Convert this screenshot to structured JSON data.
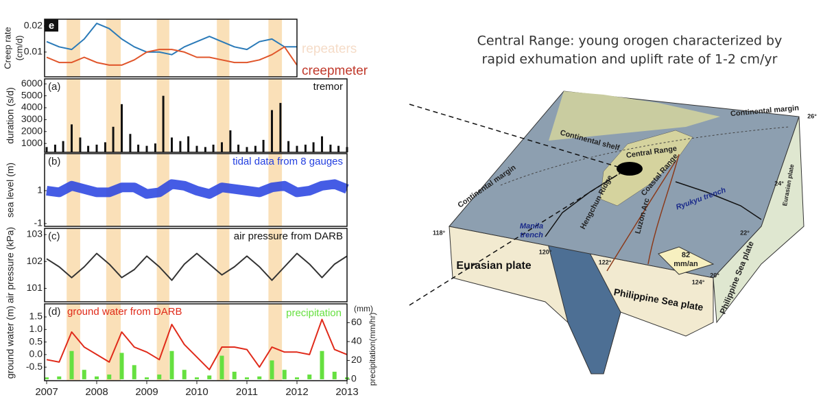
{
  "highlight_periods": [
    [
      2007.4,
      2007.67
    ],
    [
      2008.19,
      2008.48
    ],
    [
      2009.2,
      2009.45
    ],
    [
      2010.4,
      2010.65
    ],
    [
      2011.43,
      2011.7
    ]
  ],
  "chart_data": [
    {
      "type": "line",
      "label": "e",
      "ylabel": [
        "Creep rate",
        "(cm/d)"
      ],
      "xlim": [
        2007,
        2012
      ],
      "ylim": [
        0.0005,
        0.0226
      ],
      "yticks": [
        0.01,
        0.02
      ],
      "x": [
        2007,
        2007.25,
        2007.5,
        2007.75,
        2008,
        2008.25,
        2008.5,
        2008.75,
        2009,
        2009.25,
        2009.5,
        2009.75,
        2010,
        2010.25,
        2010.5,
        2010.75,
        2011,
        2011.25,
        2011.5,
        2011.75,
        2012
      ],
      "series": [
        {
          "name": "repeaters",
          "color": "#2a7ab8",
          "values": [
            0.014,
            0.012,
            0.011,
            0.015,
            0.021,
            0.019,
            0.015,
            0.012,
            0.01,
            0.01,
            0.009,
            0.012,
            0.014,
            0.016,
            0.014,
            0.012,
            0.011,
            0.014,
            0.015,
            0.012,
            0.012
          ]
        },
        {
          "name": "creepmeter",
          "color": "#e0552a",
          "values": [
            0.008,
            0.006,
            0.006,
            0.008,
            0.006,
            0.005,
            0.005,
            0.007,
            0.01,
            0.011,
            0.011,
            0.01,
            0.008,
            0.008,
            0.007,
            0.006,
            0.006,
            0.007,
            0.009,
            0.012,
            0.005
          ]
        }
      ]
    },
    {
      "type": "bar",
      "label": "(a)",
      "ylabel": "duration (s/d)",
      "xlim": [
        2007,
        2013
      ],
      "ylim": [
        260,
        6420
      ],
      "yticks": [
        1000,
        2000,
        3000,
        4000,
        5000,
        6000
      ],
      "x": [
        2007,
        2007.17,
        2007.33,
        2007.5,
        2007.67,
        2007.83,
        2008,
        2008.17,
        2008.33,
        2008.5,
        2008.67,
        2008.83,
        2009,
        2009.17,
        2009.33,
        2009.5,
        2009.67,
        2009.83,
        2010,
        2010.17,
        2010.33,
        2010.5,
        2010.67,
        2010.83,
        2011,
        2011.17,
        2011.33,
        2011.5,
        2011.67,
        2011.83,
        2012,
        2012.17,
        2012.33,
        2012.5,
        2012.67,
        2012.83,
        2013
      ],
      "series": [
        {
          "name": "tremor",
          "color": "#111111",
          "values": [
            700,
            900,
            1200,
            2600,
            1500,
            800,
            900,
            1100,
            2400,
            4300,
            1800,
            900,
            800,
            1000,
            5000,
            1500,
            1200,
            1600,
            800,
            700,
            900,
            1100,
            2100,
            900,
            700,
            800,
            1300,
            3800,
            4400,
            1200,
            800,
            900,
            1100,
            1600,
            900,
            800,
            700
          ]
        }
      ]
    },
    {
      "type": "line",
      "label": "(b)",
      "ylabel": "sea level (m)",
      "xlim": [
        2007,
        2013
      ],
      "ylim": [
        -1.17,
        3.25
      ],
      "yticks": [
        -1,
        1
      ],
      "x": [
        2007,
        2007.25,
        2007.5,
        2007.75,
        2008,
        2008.25,
        2008.5,
        2008.75,
        2009,
        2009.25,
        2009.5,
        2009.75,
        2010,
        2010.25,
        2010.5,
        2010.75,
        2011,
        2011.25,
        2011.5,
        2011.75,
        2012,
        2012.25,
        2012.5,
        2012.75,
        2013
      ],
      "series": [
        {
          "name": "tidal data from 8 gauges",
          "color": "#2440e0",
          "values": [
            1.0,
            0.9,
            1.3,
            1.1,
            0.9,
            0.9,
            1.2,
            1.2,
            0.8,
            0.9,
            1.4,
            1.3,
            1.0,
            0.8,
            1.2,
            1.1,
            1.0,
            0.9,
            1.2,
            1.3,
            0.9,
            1.0,
            1.3,
            1.4,
            1.1
          ]
        }
      ]
    },
    {
      "type": "line",
      "label": "(c)",
      "ylabel": "air pressure (kPa)",
      "xlim": [
        2007,
        2013
      ],
      "ylim": [
        100.5,
        103.23
      ],
      "yticks": [
        101,
        102,
        103
      ],
      "x": [
        2007,
        2007.25,
        2007.5,
        2007.75,
        2008,
        2008.25,
        2008.5,
        2008.75,
        2009,
        2009.25,
        2009.5,
        2009.75,
        2010,
        2010.25,
        2010.5,
        2010.75,
        2011,
        2011.25,
        2011.5,
        2011.75,
        2012,
        2012.25,
        2012.5,
        2012.75,
        2013
      ],
      "series": [
        {
          "name": "air pressure from DARB",
          "color": "#333333",
          "values": [
            102.1,
            101.8,
            101.4,
            101.8,
            102.3,
            101.9,
            101.4,
            101.7,
            102.2,
            101.8,
            101.3,
            101.9,
            102.3,
            101.9,
            101.5,
            101.8,
            102.2,
            101.8,
            101.3,
            101.8,
            102.3,
            101.9,
            101.4,
            101.9,
            102.2
          ]
        }
      ]
    },
    {
      "type": "line",
      "label": "(d)",
      "ylabel": "ground water (m)",
      "y2label": "precipitation(mm/hr)",
      "y2unit": "(mm)",
      "xlim": [
        2007,
        2013
      ],
      "xticks": [
        2007,
        2008,
        2009,
        2010,
        2011,
        2012,
        2013
      ],
      "ylim": [
        -1.04,
        2.02
      ],
      "yticks": [
        {
          "value": -0.5,
          "label": "-0.5"
        },
        {
          "value": 0,
          "label": "0.0"
        },
        0.5,
        {
          "value": 1,
          "label": "1.0"
        },
        1.5
      ],
      "y2lim": [
        -1.5,
        80
      ],
      "y2ticks": [
        0,
        20,
        40,
        60
      ],
      "x": [
        2007,
        2007.25,
        2007.5,
        2007.75,
        2008,
        2008.25,
        2008.5,
        2008.75,
        2009,
        2009.25,
        2009.5,
        2009.75,
        2010,
        2010.25,
        2010.5,
        2010.75,
        2011,
        2011.25,
        2011.5,
        2011.75,
        2012,
        2012.25,
        2012.5,
        2012.75,
        2013
      ],
      "series": [
        {
          "name": "ground water from DARB",
          "color": "#e02a1a",
          "values": [
            -0.2,
            -0.3,
            0.9,
            0.3,
            0.0,
            -0.3,
            0.9,
            0.3,
            0.1,
            -0.2,
            1.2,
            0.4,
            -0.1,
            -0.6,
            0.3,
            0.3,
            0.2,
            -0.5,
            0.3,
            0.1,
            0.1,
            0.0,
            1.4,
            0.2,
            0.0
          ]
        },
        {
          "name": "precipitation",
          "color": "#66e040",
          "axis": "y2",
          "type": "bar",
          "values": [
            2,
            3,
            30,
            10,
            3,
            5,
            28,
            15,
            2,
            5,
            30,
            10,
            2,
            4,
            25,
            8,
            2,
            3,
            20,
            10,
            2,
            5,
            30,
            8,
            2
          ]
        }
      ]
    }
  ],
  "slide": {
    "title": [
      "Central Range: young orogen characterized by",
      "rapid exhumation and uplift rate of 1-2 cm/yr"
    ]
  },
  "diagram": {
    "labels": [
      "Continental margin",
      "Continental margin",
      "Continental shelf",
      "Central Range",
      "Coastal Range",
      "Hengchun Ridge",
      "Luzon Arc",
      "Ryukyu trench",
      "Manila",
      "trench",
      "Eurasian plate",
      "Philippine Sea plate",
      "Philippine Sea plate",
      "Eurasian plate",
      "82",
      "mm/an"
    ],
    "coordinates": [
      "118°",
      "120°",
      "122°",
      "124°",
      "20°",
      "22°",
      "24°",
      "26°"
    ]
  }
}
